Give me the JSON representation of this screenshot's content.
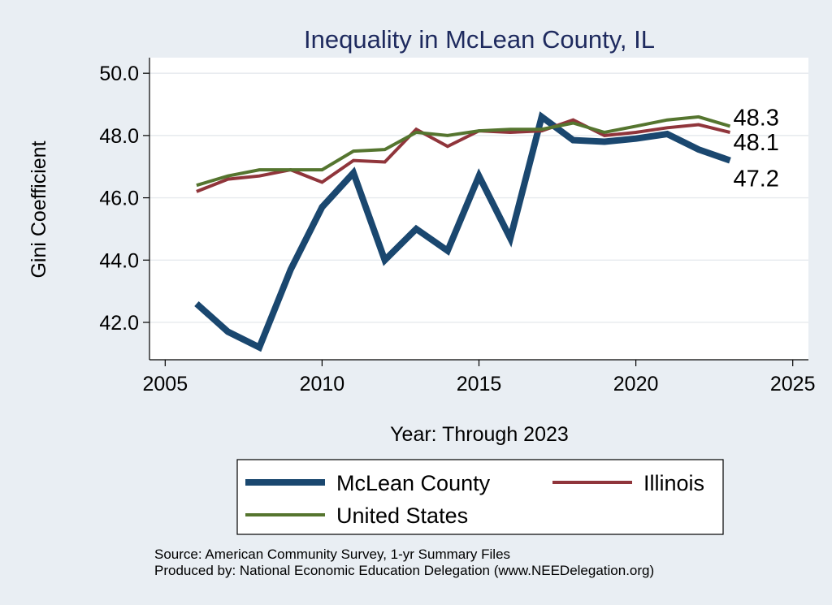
{
  "chart_data": {
    "type": "line",
    "title": "Inequality in McLean County, IL",
    "xlabel": "Year: Through 2023",
    "ylabel": "Gini Coefficient",
    "xlim": [
      2004.5,
      2025.5
    ],
    "ylim": [
      40.8,
      50.5
    ],
    "x_ticks": [
      2005,
      2010,
      2015,
      2020,
      2025
    ],
    "y_ticks": [
      42.0,
      44.0,
      46.0,
      48.0,
      50.0
    ],
    "y_tick_labels": [
      "42.0",
      "44.0",
      "46.0",
      "48.0",
      "50.0"
    ],
    "grid": "horizontal",
    "legend": "bottom",
    "x": [
      2006,
      2007,
      2008,
      2009,
      2010,
      2011,
      2012,
      2013,
      2014,
      2015,
      2016,
      2017,
      2018,
      2019,
      2020,
      2021,
      2022,
      2023
    ],
    "series": [
      {
        "name": "McLean County",
        "color": "#1a476f",
        "values": [
          42.6,
          41.7,
          41.2,
          43.7,
          45.7,
          46.8,
          44.0,
          45.0,
          44.3,
          46.7,
          44.7,
          48.6,
          47.85,
          47.8,
          47.9,
          48.05,
          47.55,
          47.2
        ],
        "end_label": "47.2"
      },
      {
        "name": "Illinois",
        "color": "#90353b",
        "values": [
          46.2,
          46.6,
          46.7,
          46.9,
          46.5,
          47.2,
          47.15,
          48.2,
          47.65,
          48.15,
          48.1,
          48.15,
          48.5,
          48.0,
          48.1,
          48.25,
          48.35,
          48.1
        ],
        "end_label": "48.1"
      },
      {
        "name": "United States",
        "color": "#55752f",
        "values": [
          46.4,
          46.7,
          46.9,
          46.9,
          46.9,
          47.5,
          47.55,
          48.1,
          48.0,
          48.15,
          48.2,
          48.2,
          48.4,
          48.1,
          48.3,
          48.5,
          48.6,
          48.3
        ],
        "end_label": "48.3"
      }
    ],
    "source": [
      "Source: American Community Survey, 1-yr Summary Files",
      "Produced by: National Economic Education Delegation (www.NEEDelegation.org)"
    ]
  }
}
